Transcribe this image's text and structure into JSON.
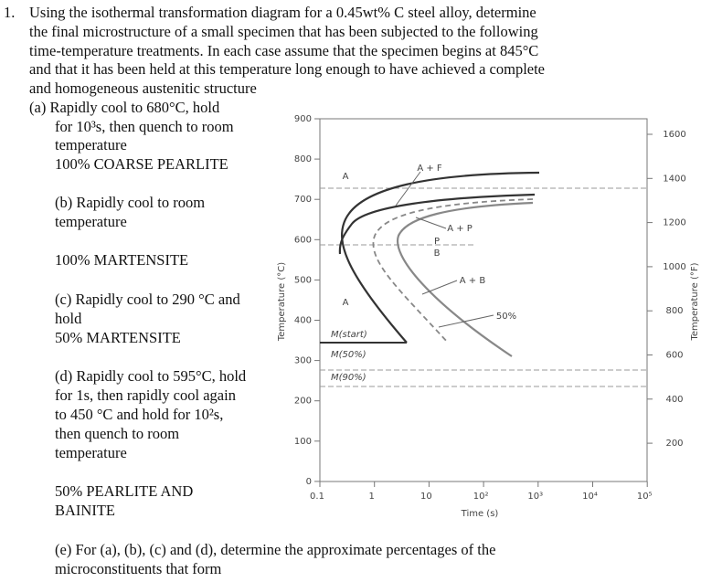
{
  "question": {
    "number": "1.",
    "lines": [
      "Using the isothermal transformation diagram for a 0.45wt% C steel alloy, determine",
      "the final microstructure of a small specimen that has been subjected to the following",
      "time-temperature treatments. In each case assume that the specimen begins at 845°C",
      "and that it has been held at this temperature long enough to have achieved a complete",
      "and homogeneous austenitic structure"
    ]
  },
  "parts": [
    {
      "lines": [
        "(a)  Rapidly cool to 680°C, hold",
        "for 10³s, then quench to room",
        "temperature"
      ],
      "answer": [
        "100% COARSE PEARLITE"
      ]
    },
    {
      "lines": [
        "(b) Rapidly cool to room",
        "temperature"
      ],
      "answer": [
        "100% MARTENSITE"
      ]
    },
    {
      "lines": [
        "(c) Rapidly cool to 290 °C and",
        "hold"
      ],
      "answer": [
        "50% MARTENSITE"
      ]
    },
    {
      "lines": [
        "(d) Rapidly cool to 595°C, hold",
        "for 1s, then rapidly cool again",
        "to 450 °C  and hold for 10²s,",
        "then quench to room",
        "temperature"
      ],
      "answer": [
        "50% PEARLITE AND",
        "BAINITE"
      ]
    },
    {
      "lines": [
        "(e) For (a), (b), (c) and (d), determine the approximate percentages of the",
        "microconstituents that form"
      ]
    }
  ],
  "diagram": {
    "y_label": "Temperature (°C)",
    "y_ticks": [
      900,
      800,
      700,
      600,
      500,
      400,
      300,
      200,
      100,
      0
    ],
    "y2_label": "Temperature (°F)",
    "y2_ticks": [
      1600,
      1400,
      1200,
      1000,
      800,
      600,
      400,
      200
    ],
    "x_label": "Time (s)",
    "x_ticks": [
      "0.1",
      "1",
      "10",
      "10²",
      "10³",
      "10⁴",
      "10⁵"
    ],
    "region_labels": [
      "A",
      "A + F",
      "A + P",
      "P",
      "B",
      "A + B",
      "A",
      "50%"
    ],
    "martensite_labels": [
      "M(start)",
      "M(50%)",
      "M(90%)"
    ]
  }
}
